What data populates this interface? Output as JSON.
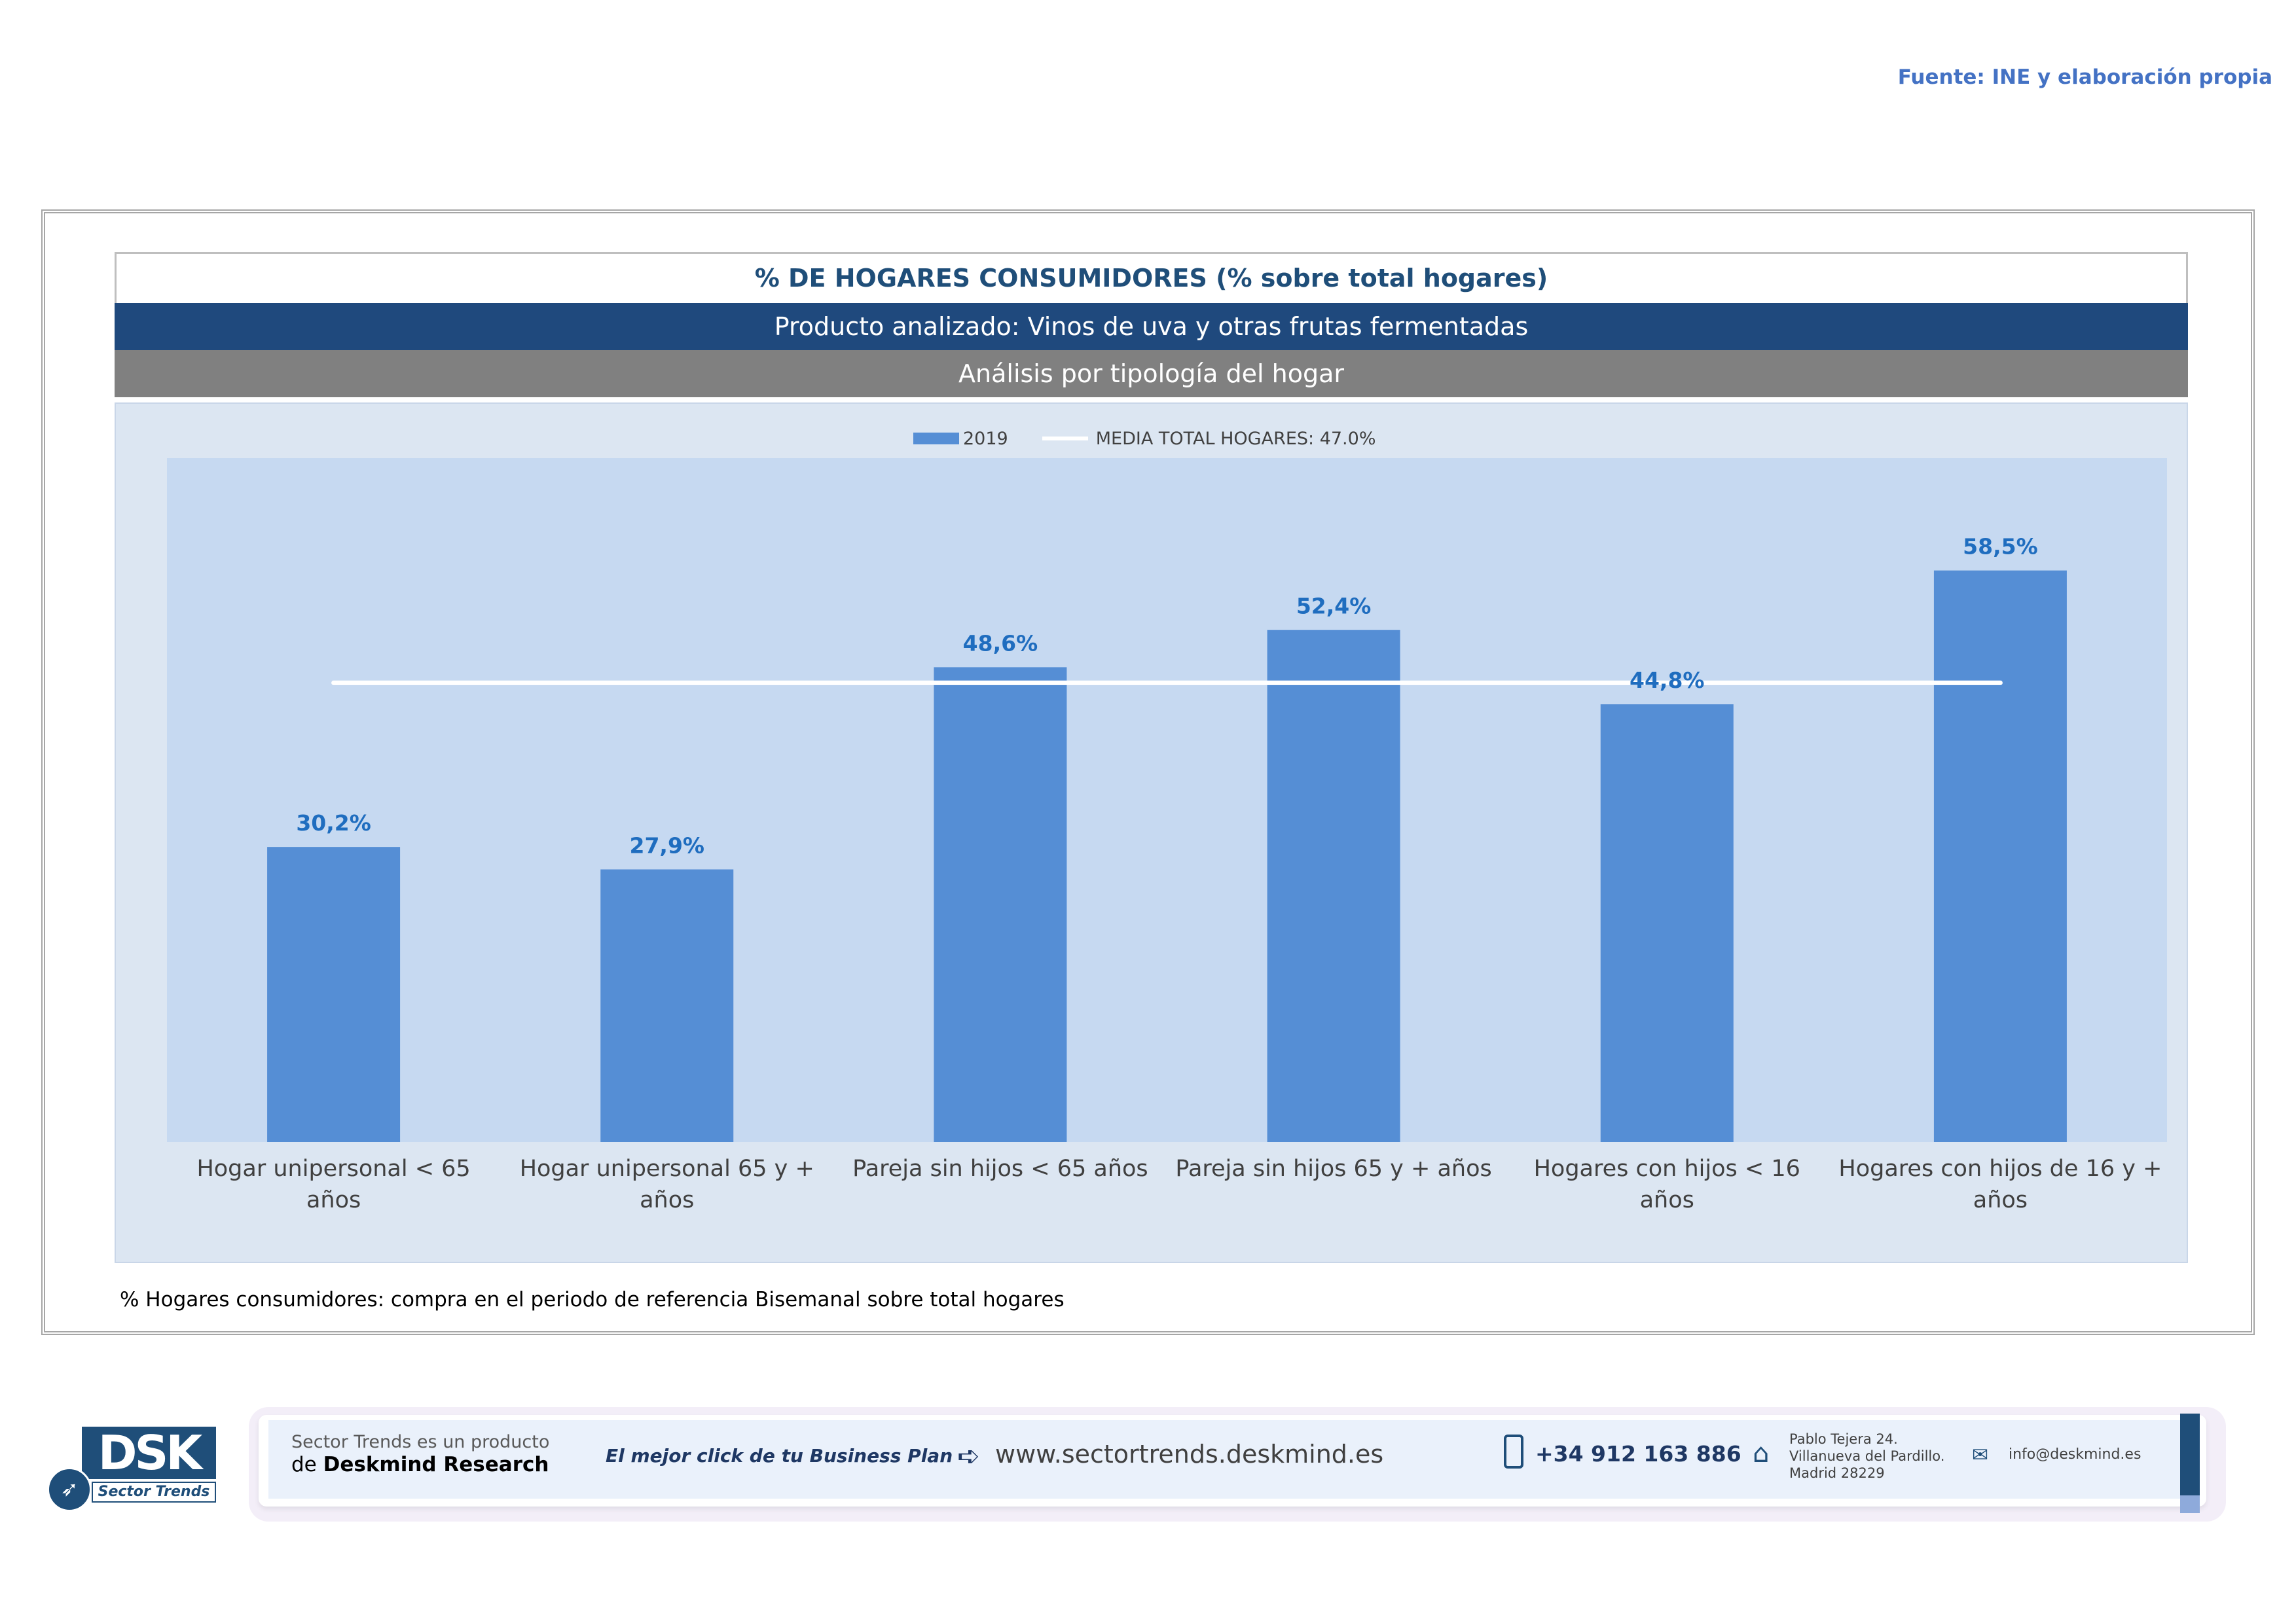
{
  "source": "Fuente: INE y elaboración propia",
  "header": {
    "title": "% DE HOGARES CONSUMIDORES (% sobre total hogares)",
    "product": "Producto analizado: Vinos de uva y otras frutas fermentadas",
    "analysis": "Análisis por tipología del hogar"
  },
  "legend": {
    "series_label": "2019",
    "mean_label": "MEDIA TOTAL  HOGARES:  47.0%"
  },
  "chart_data": {
    "type": "bar",
    "categories": [
      "Hogar unipersonal < 65 años",
      "Hogar unipersonal  65 y + años",
      "Pareja sin hijos < 65 años",
      "Pareja sin hijos 65 y + años",
      "Hogares con hijos < 16 años",
      "Hogares con hijos de 16 y + años"
    ],
    "series": [
      {
        "name": "2019",
        "values": [
          30.2,
          27.9,
          48.6,
          52.4,
          44.8,
          58.5
        ],
        "labels": [
          "30,2%",
          "27,9%",
          "48,6%",
          "52,4%",
          "44,8%",
          "58,5%"
        ],
        "color": "#558ed5"
      }
    ],
    "reference_line": {
      "name": "MEDIA TOTAL  HOGARES",
      "value": 47.0,
      "color": "#ffffff"
    },
    "ylim": [
      0,
      70
    ],
    "grid": false,
    "legend_position": "top",
    "title": "",
    "xlabel": "",
    "ylabel": ""
  },
  "footnote": "% Hogares consumidores: compra en el periodo de referencia Bisemanal sobre total hogares",
  "footer": {
    "logo_text": "DSK",
    "logo_sub": "Sector Trends",
    "product_line1": "Sector Trends es un producto",
    "product_line2_prefix": "de ",
    "product_line2_brand": "Deskmind Research",
    "slogan": "El mejor click de tu Business Plan",
    "url": "www.sectortrends.deskmind.es",
    "phone": "+34 912 163 886",
    "address_line1": "Pablo Tejera 24.",
    "address_line2": "Villanueva del Pardillo.",
    "address_line3": "Madrid 28229",
    "email": "info@deskmind.es"
  }
}
